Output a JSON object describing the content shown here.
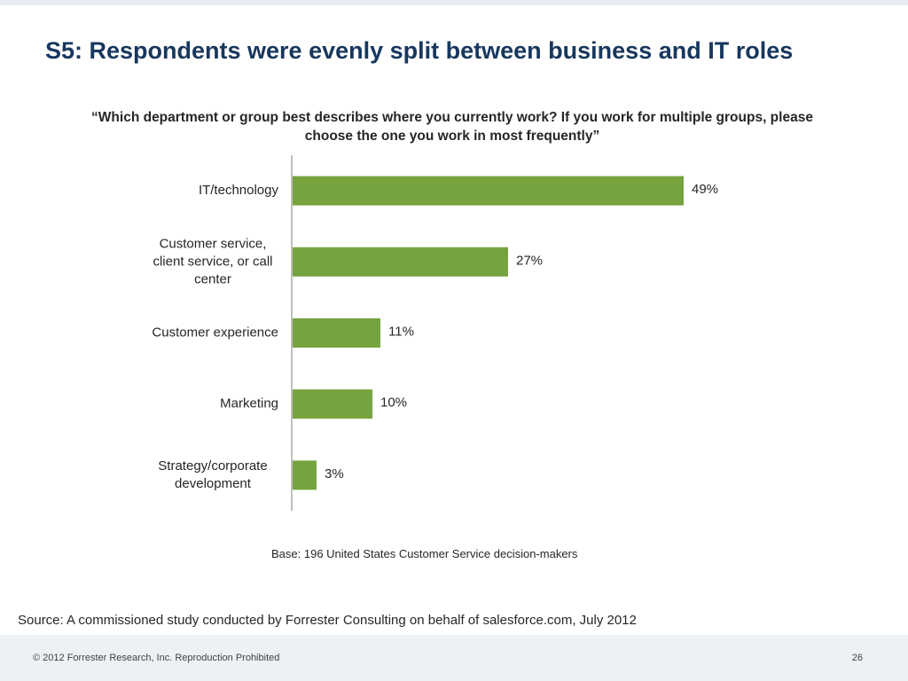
{
  "slide": {
    "title": "S5: Respondents were evenly split between business and IT roles",
    "question": "“Which department or group best describes where you currently work? If you work for multiple groups, please choose the one you work in most frequently”",
    "base_note": "Base: 196 United States Customer Service decision-makers",
    "source": "Source: A commissioned study conducted by Forrester Consulting on behalf of salesforce.com, July 2012",
    "copyright": "© 2012 Forrester Research, Inc. Reproduction Prohibited",
    "page_number": "26"
  },
  "chart_data": {
    "type": "bar",
    "orientation": "horizontal",
    "title": "",
    "xlabel": "",
    "ylabel": "",
    "categories": [
      [
        "IT/technology"
      ],
      [
        "Customer service,",
        "client service, or call",
        "center"
      ],
      [
        "Customer experience"
      ],
      [
        "Marketing"
      ],
      [
        "Strategy/corporate",
        "development"
      ]
    ],
    "values": [
      49,
      27,
      11,
      10,
      3
    ],
    "value_labels": [
      "49%",
      "27%",
      "11%",
      "10%",
      "3%"
    ],
    "xlim": [
      0,
      50
    ],
    "bar_color": "#77a33f",
    "axis_color": "#7f7f7f",
    "grid": false,
    "legend": "none"
  }
}
